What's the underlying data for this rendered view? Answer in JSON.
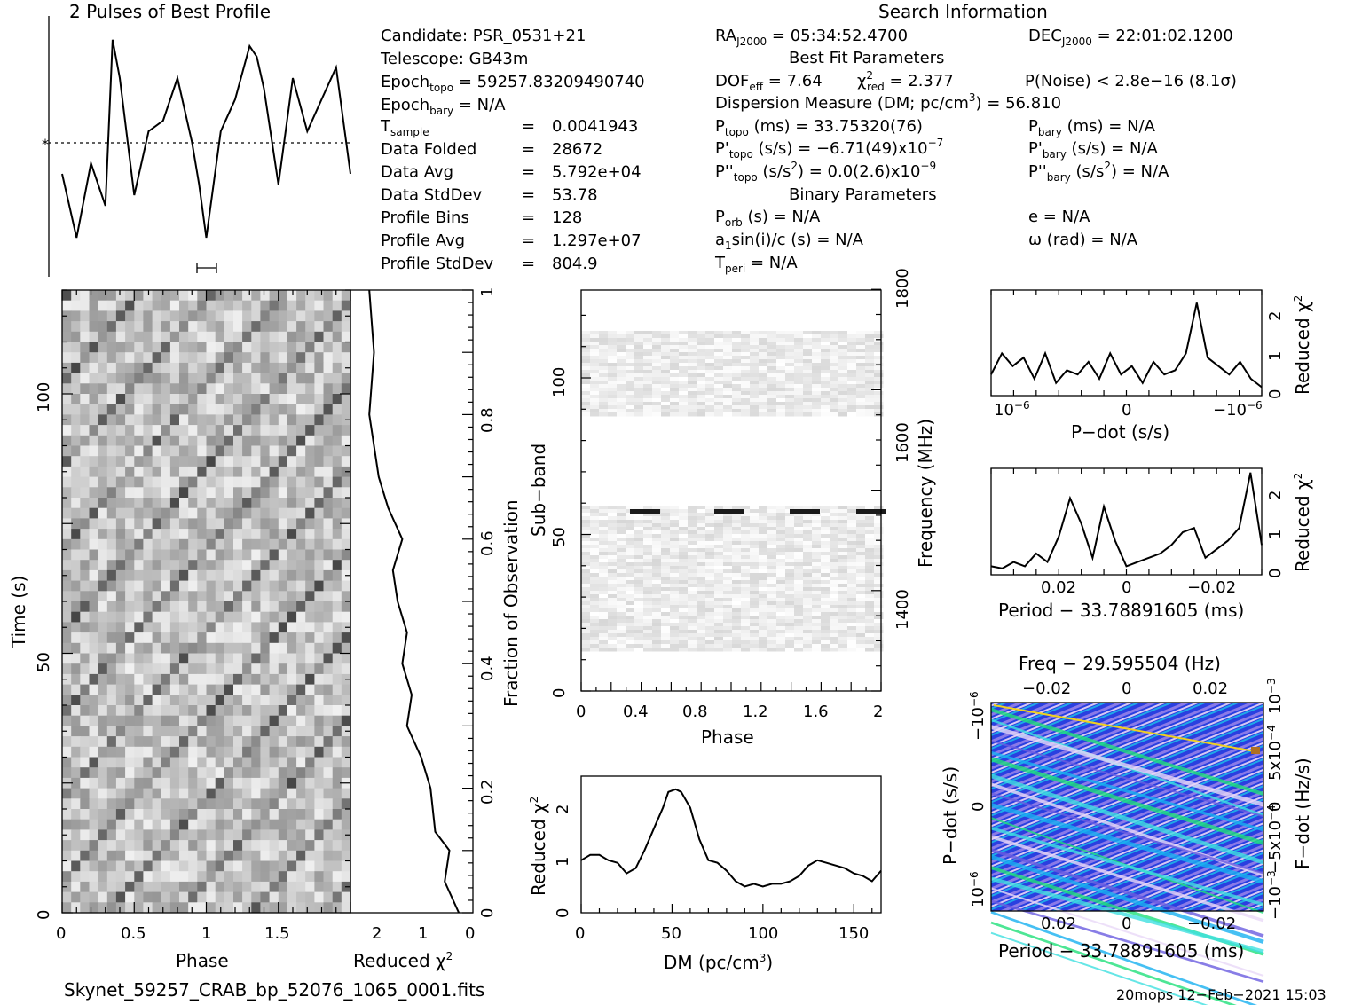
{
  "profile": {
    "title": "2 Pulses of Best Profile"
  },
  "search_info": {
    "title": "Search Information",
    "best_fit_title": "Best Fit Parameters",
    "binary_title": "Binary Parameters",
    "candidate": "Candidate:  PSR_0531+21",
    "telescope": "Telescope:  GB43m",
    "epoch_topo": "Epoch",
    "epoch_topo_sub": "topo",
    "epoch_topo_val": " = 59257.83209490740",
    "epoch_bary": "Epoch",
    "epoch_bary_sub": "bary",
    "epoch_bary_val": " = N/A",
    "rows_left": [
      {
        "label": "T",
        "sub": "sample",
        "eq": "=",
        "val": "0.0041943"
      },
      {
        "label": "Data Folded",
        "sub": "",
        "eq": "=",
        "val": "28672"
      },
      {
        "label": "Data Avg",
        "sub": "",
        "eq": "=",
        "val": "5.792e+04"
      },
      {
        "label": "Data StdDev",
        "sub": "",
        "eq": "=",
        "val": "53.78"
      },
      {
        "label": "Profile Bins",
        "sub": "",
        "eq": "=",
        "val": "128"
      },
      {
        "label": "Profile Avg",
        "sub": "",
        "eq": "=",
        "val": "1.297e+07"
      },
      {
        "label": "Profile StdDev",
        "sub": "",
        "eq": "=",
        "val": "804.9"
      }
    ],
    "ra": "RA",
    "ra_sub": "J2000",
    "ra_val": " = 05:34:52.4700",
    "dec": "DEC",
    "dec_sub": "J2000",
    "dec_val": " = 22:01:02.1200",
    "dof": "DOF",
    "dof_sub": "eff",
    "dof_val": " = 7.64",
    "chi": "χ",
    "chi_sup": "2",
    "chi_sub": "red",
    "chi_val": " = 2.377",
    "pnoise": "P(Noise) < 2.8e−16   (8.1σ)",
    "dm_line": "Dispersion Measure (DM; pc/cm",
    "dm_sup": "3",
    "dm_val": ") = 56.810",
    "ptopo": "P",
    "ptopo_sub": "topo",
    "ptopo_val": " (ms) =  33.75320(76)",
    "pbary": "P",
    "pbary_sub": "bary",
    "pbary_val": " (ms) = N/A",
    "pdtopo": "P'",
    "pdtopo_sub": "topo",
    "pdtopo_val": " (s/s) = −6.71(49)x10",
    "pdtopo_exp": "−7",
    "pdbary": "P'",
    "pdbary_sub": "bary",
    "pdbary_val": " (s/s) = N/A",
    "pddtopo": "P''",
    "pddtopo_sub": "topo",
    "pddtopo_val": " (s/s",
    "pddtopo_sup": "2",
    "pddtopo_val2": ") = 0.0(2.6)x10",
    "pddtopo_exp": "−9",
    "pddbary": "P''",
    "pddbary_sub": "bary",
    "pddbary_val": " (s/s",
    "pddbary_sup": "2",
    "pddbary_val2": ") = N/A",
    "porb": "P",
    "porb_sub": "orb",
    "porb_val": " (s) = N/A",
    "ecc": "e = N/A",
    "a1": "a",
    "a1_sub": "1",
    "a1_val": "sin(i)/c (s) = N/A",
    "omega": "ω (rad) = N/A",
    "tperi": "T",
    "tperi_sub": "peri",
    "tperi_val": " = N/A"
  },
  "time_phase": {
    "xlabel": "Phase",
    "ylabel": "Time (s)",
    "xticks": [
      "0",
      "0.5",
      "1",
      "1.5"
    ],
    "yticks": [
      "0",
      "50",
      "100"
    ]
  },
  "chi_vs_time": {
    "xlabel": "Reduced",
    "xlabel_sup": "2",
    "xticks": [
      "2",
      "1",
      "0"
    ],
    "right_label": "Fraction of Observation",
    "right_ticks": [
      "0",
      "0.2",
      "0.4",
      "0.6",
      "0.8",
      "1"
    ]
  },
  "subband": {
    "xlabel": "Phase",
    "ylabel": "Sub−band",
    "right_label": "Frequency (MHz)",
    "xticks": [
      "0",
      "0.4",
      "0.8",
      "1.2",
      "1.6",
      "2"
    ],
    "yticks": [
      "0",
      "50",
      "100"
    ],
    "right_ticks": [
      "1400",
      "1600",
      "1800"
    ]
  },
  "dm_plot": {
    "xlabel": "DM (pc/cm",
    "xlabel_sup": "3",
    "xlabel_end": ")",
    "ylabel": "Reduced",
    "xticks": [
      "0",
      "50",
      "100",
      "150"
    ],
    "yticks": [
      "0",
      "1",
      "2"
    ]
  },
  "pdot_plot": {
    "xlabel": "P−dot (s/s)",
    "right_label": "Reduced",
    "xticks": [
      "10",
      "0",
      "−10"
    ],
    "xtick_exp": "−6",
    "yticks": [
      "0",
      "1",
      "2"
    ]
  },
  "period_plot": {
    "xlabel": "Period − 33.78891605 (ms)",
    "right_label": "Reduced",
    "xticks": [
      "0.02",
      "0",
      "−0.02"
    ],
    "yticks": [
      "0",
      "1",
      "2"
    ]
  },
  "pp_plane": {
    "top_label": "Freq − 29.595504 (Hz)",
    "top_ticks": [
      "−0.02",
      "0",
      "0.02"
    ],
    "xlabel": "Period − 33.78891605 (ms)",
    "xticks": [
      "0.02",
      "0",
      "−0.02"
    ],
    "ylabel": "P−dot (s/s)",
    "yticks": [
      "10",
      "0",
      "−10"
    ],
    "ytick_exp": "−6",
    "right_label": "F−dot (Hz/s)",
    "right_ticks": [
      "−10",
      "−5x10",
      "0",
      "5x10",
      "10"
    ],
    "right_exps": [
      "−3",
      "−4",
      "",
      "−4",
      "−3"
    ]
  },
  "footer": {
    "filename": "Skynet_59257_CRAB_bp_52076_1065_0001.fits",
    "stamp": "20mops 12−Feb−2021 15:03"
  },
  "chart_data": [
    {
      "type": "line",
      "title": "2 Pulses of Best Profile",
      "xlabel": "",
      "ylabel": "",
      "x": [
        0.0,
        0.1,
        0.2,
        0.3,
        0.35,
        0.4,
        0.5,
        0.6,
        0.7,
        0.8,
        0.9,
        0.95,
        1.0,
        1.1,
        1.2,
        1.3,
        1.35,
        1.4,
        1.5,
        1.6,
        1.7,
        1.8,
        1.9,
        2.0
      ],
      "values": [
        0.35,
        0.05,
        0.4,
        0.2,
        0.98,
        0.8,
        0.25,
        0.55,
        0.6,
        0.8,
        0.5,
        0.3,
        0.05,
        0.55,
        0.7,
        0.95,
        0.9,
        0.75,
        0.3,
        0.8,
        0.55,
        0.7,
        0.85,
        0.35
      ]
    },
    {
      "type": "heatmap",
      "xlabel": "Phase",
      "ylabel": "Time (s)",
      "xlim": [
        0,
        2
      ],
      "ylim": [
        0,
        120
      ]
    },
    {
      "type": "line",
      "xlabel": "Reduced χ2",
      "ylabel": "Fraction of Observation",
      "x": [
        0.3,
        0.6,
        0.5,
        0.8,
        0.9,
        1.1,
        1.4,
        1.3,
        1.5,
        1.4,
        1.6,
        1.7,
        1.5,
        1.8,
        2.0,
        2.1,
        2.2,
        2.1,
        2.2
      ],
      "y": [
        0.0,
        0.05,
        0.1,
        0.13,
        0.2,
        0.25,
        0.3,
        0.35,
        0.4,
        0.45,
        0.5,
        0.55,
        0.6,
        0.65,
        0.7,
        0.75,
        0.8,
        0.9,
        1.0
      ]
    },
    {
      "type": "heatmap",
      "xlabel": "Phase",
      "ylabel": "Sub−band",
      "xlim": [
        0,
        2
      ],
      "ylim": [
        0,
        128
      ]
    },
    {
      "type": "line",
      "xlabel": "DM (pc/cm3)",
      "ylabel": "Reduced χ2",
      "x": [
        0,
        5,
        10,
        15,
        20,
        25,
        30,
        35,
        40,
        45,
        48,
        52,
        55,
        60,
        65,
        70,
        75,
        80,
        85,
        90,
        95,
        100,
        105,
        110,
        115,
        120,
        125,
        130,
        135,
        140,
        145,
        150,
        155,
        160,
        165
      ],
      "values": [
        1.0,
        1.1,
        1.1,
        1.0,
        0.95,
        0.75,
        0.85,
        1.2,
        1.6,
        2.0,
        2.3,
        2.35,
        2.3,
        2.0,
        1.4,
        1.0,
        0.95,
        0.8,
        0.6,
        0.5,
        0.55,
        0.5,
        0.55,
        0.55,
        0.6,
        0.7,
        0.9,
        1.0,
        0.95,
        0.9,
        0.85,
        0.75,
        0.7,
        0.6,
        0.8
      ],
      "xlim": [
        0,
        165
      ],
      "ylim": [
        0,
        2.6
      ]
    },
    {
      "type": "line",
      "xlabel": "P−dot (s/s)",
      "ylabel": "Reduced χ2",
      "values": [
        0.5,
        1.0,
        0.7,
        0.9,
        0.4,
        1.0,
        0.3,
        0.6,
        0.5,
        0.8,
        0.4,
        1.0,
        0.5,
        0.7,
        0.3,
        0.8,
        0.5,
        0.6,
        1.0,
        2.2,
        0.9,
        0.7,
        0.5,
        0.8,
        0.4,
        0.2
      ],
      "ylim": [
        0,
        2.5
      ]
    },
    {
      "type": "line",
      "xlabel": "Period − 33.78891605 (ms)",
      "ylabel": "Reduced χ2",
      "values": [
        0.2,
        0.15,
        0.3,
        0.2,
        0.5,
        0.3,
        0.9,
        1.8,
        1.2,
        0.4,
        1.6,
        0.8,
        0.2,
        0.3,
        0.4,
        0.5,
        0.7,
        1.0,
        1.1,
        0.4,
        0.6,
        0.8,
        1.1,
        2.4,
        0.7
      ],
      "ylim": [
        0,
        2.5
      ]
    },
    {
      "type": "heatmap",
      "title": "Freq − 29.595504 (Hz)",
      "xlabel": "Period − 33.78891605 (ms)",
      "ylabel": "P−dot (s/s)"
    }
  ]
}
